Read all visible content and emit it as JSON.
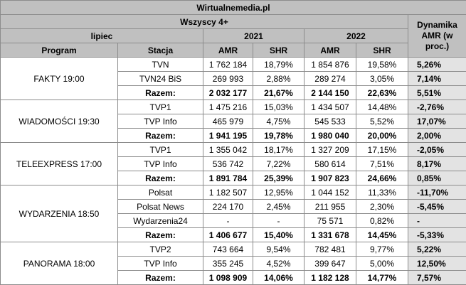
{
  "header": {
    "source": "Wirtualnemedia.pl",
    "audience": "Wszyscy 4+",
    "dynamics": "Dynamika AMR (w proc.)",
    "period": "lipiec",
    "year1": "2021",
    "year2": "2022",
    "columns": [
      "Program",
      "Stacja",
      "AMR",
      "SHR",
      "AMR",
      "SHR"
    ]
  },
  "groups": [
    {
      "program": "FAKTY 19:00",
      "rows": [
        [
          "TVN",
          "1 762 184",
          "18,79%",
          "1 854 876",
          "19,58%",
          "5,26%"
        ],
        [
          "TVN24 BiS",
          "269 993",
          "2,88%",
          "289 274",
          "3,05%",
          "7,14%"
        ],
        [
          "Razem:",
          "2 032 177",
          "21,67%",
          "2 144 150",
          "22,63%",
          "5,51%"
        ]
      ]
    },
    {
      "program": "WIADOMOŚCI 19:30",
      "rows": [
        [
          "TVP1",
          "1 475 216",
          "15,03%",
          "1 434 507",
          "14,48%",
          "-2,76%"
        ],
        [
          "TVP Info",
          "465 979",
          "4,75%",
          "545 533",
          "5,52%",
          "17,07%"
        ],
        [
          "Razem:",
          "1 941 195",
          "19,78%",
          "1 980 040",
          "20,00%",
          "2,00%"
        ]
      ]
    },
    {
      "program": "TELEEXPRESS 17:00",
      "rows": [
        [
          "TVP1",
          "1 355 042",
          "18,17%",
          "1 327 209",
          "17,15%",
          "-2,05%"
        ],
        [
          "TVP Info",
          "536 742",
          "7,22%",
          "580 614",
          "7,51%",
          "8,17%"
        ],
        [
          "Razem:",
          "1 891 784",
          "25,39%",
          "1 907 823",
          "24,66%",
          "0,85%"
        ]
      ]
    },
    {
      "program": "WYDARZENIA 18:50",
      "rows": [
        [
          "Polsat",
          "1 182 507",
          "12,95%",
          "1 044 152",
          "11,33%",
          "-11,70%"
        ],
        [
          "Polsat News",
          "224 170",
          "2,45%",
          "211 955",
          "2,30%",
          "-5,45%"
        ],
        [
          "Wydarzenia24",
          "-",
          "-",
          "75 571",
          "0,82%",
          "-"
        ],
        [
          "Razem:",
          "1 406 677",
          "15,40%",
          "1 331 678",
          "14,45%",
          "-5,33%"
        ]
      ]
    },
    {
      "program": "PANORAMA 18:00",
      "rows": [
        [
          "TVP2",
          "743 664",
          "9,54%",
          "782 481",
          "9,77%",
          "5,22%"
        ],
        [
          "TVP Info",
          "355 245",
          "4,52%",
          "399 647",
          "5,00%",
          "12,50%"
        ],
        [
          "Razem:",
          "1 098 909",
          "14,06%",
          "1 182 128",
          "14,77%",
          "7,57%"
        ]
      ]
    }
  ]
}
